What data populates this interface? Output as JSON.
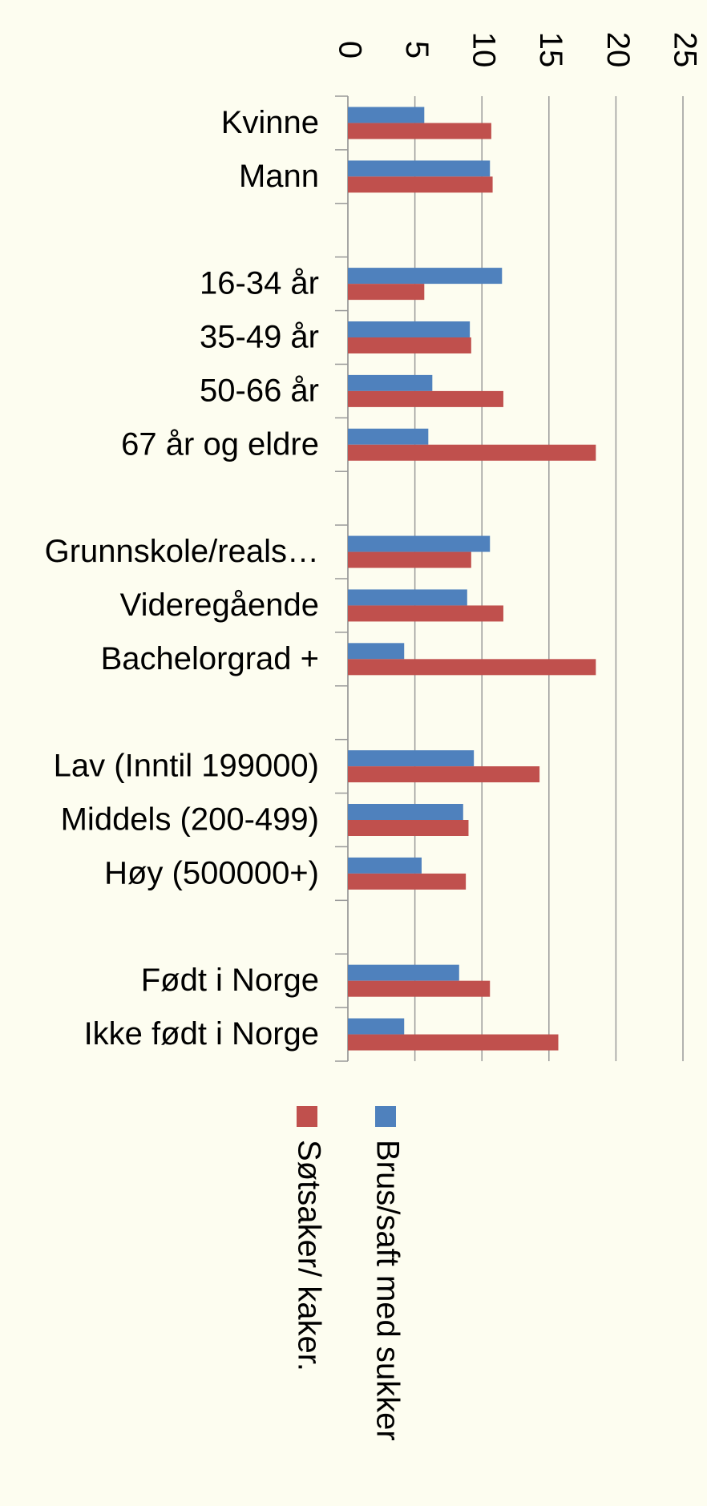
{
  "chart_data": {
    "type": "hbar",
    "categories": [
      "Kvinne",
      "Mann",
      null,
      "16-34 år",
      "35-49 år",
      "50-66 år",
      "67 år og eldre",
      null,
      "Grunnskole/reals…",
      "Videregående",
      "Bachelorgrad +",
      null,
      "Lav (Inntil 199000)",
      "Middels (200-499)",
      "Høy (500000+)",
      null,
      "Født i Norge",
      "Ikke født i Norge"
    ],
    "series": [
      {
        "name": "Brus/saft med sukker",
        "color": "#4f81bd",
        "values": [
          5.7,
          10.6,
          null,
          11.5,
          9.1,
          6.3,
          6.0,
          null,
          10.6,
          8.9,
          4.2,
          null,
          9.4,
          8.6,
          5.5,
          null,
          8.3,
          4.2
        ]
      },
      {
        "name": "Søtsaker/ kaker.",
        "color": "#c0504d",
        "values": [
          10.7,
          10.8,
          null,
          5.7,
          9.2,
          11.6,
          18.5,
          null,
          9.2,
          11.6,
          18.5,
          null,
          14.3,
          9.0,
          8.8,
          null,
          10.6,
          15.7
        ]
      }
    ],
    "xlim": [
      0,
      25
    ],
    "xticks": [
      0,
      5,
      10,
      15,
      20,
      25
    ],
    "grid": true
  }
}
